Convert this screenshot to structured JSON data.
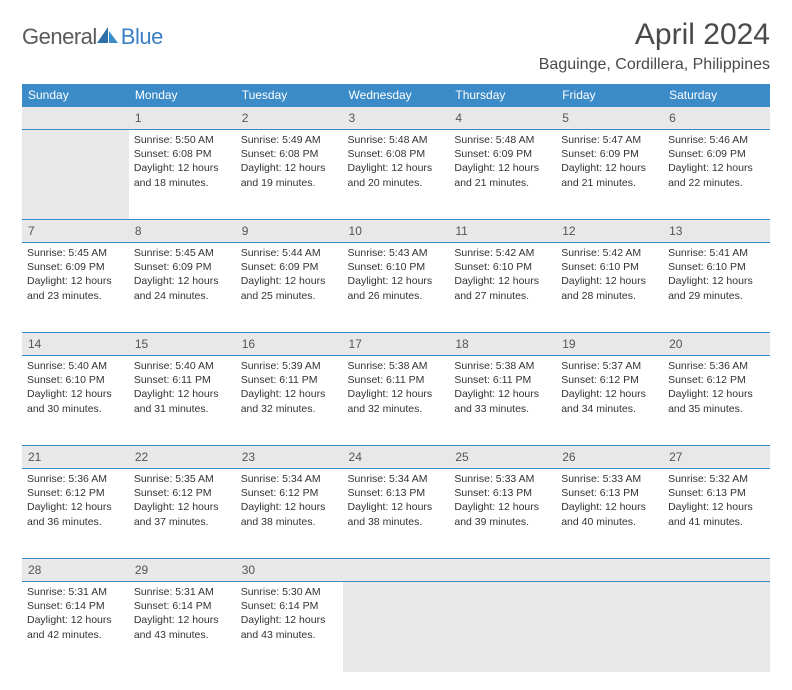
{
  "brand": {
    "general": "General",
    "blue": "Blue"
  },
  "title": "April 2024",
  "location": "Baguinge, Cordillera, Philippines",
  "colors": {
    "header_bg": "#3b8bc9",
    "header_text": "#ffffff",
    "daynum_bg": "#e8e8e8",
    "border": "#3b8bc9",
    "text": "#333333",
    "title": "#4a4a4a",
    "logo_gray": "#5a5a5a",
    "logo_blue": "#3b7fc4"
  },
  "day_headers": [
    "Sunday",
    "Monday",
    "Tuesday",
    "Wednesday",
    "Thursday",
    "Friday",
    "Saturday"
  ],
  "weeks": [
    [
      {
        "day": "",
        "sunrise": "",
        "sunset": "",
        "daylight": "",
        "empty": true
      },
      {
        "day": "1",
        "sunrise": "Sunrise: 5:50 AM",
        "sunset": "Sunset: 6:08 PM",
        "daylight": "Daylight: 12 hours and 18 minutes."
      },
      {
        "day": "2",
        "sunrise": "Sunrise: 5:49 AM",
        "sunset": "Sunset: 6:08 PM",
        "daylight": "Daylight: 12 hours and 19 minutes."
      },
      {
        "day": "3",
        "sunrise": "Sunrise: 5:48 AM",
        "sunset": "Sunset: 6:08 PM",
        "daylight": "Daylight: 12 hours and 20 minutes."
      },
      {
        "day": "4",
        "sunrise": "Sunrise: 5:48 AM",
        "sunset": "Sunset: 6:09 PM",
        "daylight": "Daylight: 12 hours and 21 minutes."
      },
      {
        "day": "5",
        "sunrise": "Sunrise: 5:47 AM",
        "sunset": "Sunset: 6:09 PM",
        "daylight": "Daylight: 12 hours and 21 minutes."
      },
      {
        "day": "6",
        "sunrise": "Sunrise: 5:46 AM",
        "sunset": "Sunset: 6:09 PM",
        "daylight": "Daylight: 12 hours and 22 minutes."
      }
    ],
    [
      {
        "day": "7",
        "sunrise": "Sunrise: 5:45 AM",
        "sunset": "Sunset: 6:09 PM",
        "daylight": "Daylight: 12 hours and 23 minutes."
      },
      {
        "day": "8",
        "sunrise": "Sunrise: 5:45 AM",
        "sunset": "Sunset: 6:09 PM",
        "daylight": "Daylight: 12 hours and 24 minutes."
      },
      {
        "day": "9",
        "sunrise": "Sunrise: 5:44 AM",
        "sunset": "Sunset: 6:09 PM",
        "daylight": "Daylight: 12 hours and 25 minutes."
      },
      {
        "day": "10",
        "sunrise": "Sunrise: 5:43 AM",
        "sunset": "Sunset: 6:10 PM",
        "daylight": "Daylight: 12 hours and 26 minutes."
      },
      {
        "day": "11",
        "sunrise": "Sunrise: 5:42 AM",
        "sunset": "Sunset: 6:10 PM",
        "daylight": "Daylight: 12 hours and 27 minutes."
      },
      {
        "day": "12",
        "sunrise": "Sunrise: 5:42 AM",
        "sunset": "Sunset: 6:10 PM",
        "daylight": "Daylight: 12 hours and 28 minutes."
      },
      {
        "day": "13",
        "sunrise": "Sunrise: 5:41 AM",
        "sunset": "Sunset: 6:10 PM",
        "daylight": "Daylight: 12 hours and 29 minutes."
      }
    ],
    [
      {
        "day": "14",
        "sunrise": "Sunrise: 5:40 AM",
        "sunset": "Sunset: 6:10 PM",
        "daylight": "Daylight: 12 hours and 30 minutes."
      },
      {
        "day": "15",
        "sunrise": "Sunrise: 5:40 AM",
        "sunset": "Sunset: 6:11 PM",
        "daylight": "Daylight: 12 hours and 31 minutes."
      },
      {
        "day": "16",
        "sunrise": "Sunrise: 5:39 AM",
        "sunset": "Sunset: 6:11 PM",
        "daylight": "Daylight: 12 hours and 32 minutes."
      },
      {
        "day": "17",
        "sunrise": "Sunrise: 5:38 AM",
        "sunset": "Sunset: 6:11 PM",
        "daylight": "Daylight: 12 hours and 32 minutes."
      },
      {
        "day": "18",
        "sunrise": "Sunrise: 5:38 AM",
        "sunset": "Sunset: 6:11 PM",
        "daylight": "Daylight: 12 hours and 33 minutes."
      },
      {
        "day": "19",
        "sunrise": "Sunrise: 5:37 AM",
        "sunset": "Sunset: 6:12 PM",
        "daylight": "Daylight: 12 hours and 34 minutes."
      },
      {
        "day": "20",
        "sunrise": "Sunrise: 5:36 AM",
        "sunset": "Sunset: 6:12 PM",
        "daylight": "Daylight: 12 hours and 35 minutes."
      }
    ],
    [
      {
        "day": "21",
        "sunrise": "Sunrise: 5:36 AM",
        "sunset": "Sunset: 6:12 PM",
        "daylight": "Daylight: 12 hours and 36 minutes."
      },
      {
        "day": "22",
        "sunrise": "Sunrise: 5:35 AM",
        "sunset": "Sunset: 6:12 PM",
        "daylight": "Daylight: 12 hours and 37 minutes."
      },
      {
        "day": "23",
        "sunrise": "Sunrise: 5:34 AM",
        "sunset": "Sunset: 6:12 PM",
        "daylight": "Daylight: 12 hours and 38 minutes."
      },
      {
        "day": "24",
        "sunrise": "Sunrise: 5:34 AM",
        "sunset": "Sunset: 6:13 PM",
        "daylight": "Daylight: 12 hours and 38 minutes."
      },
      {
        "day": "25",
        "sunrise": "Sunrise: 5:33 AM",
        "sunset": "Sunset: 6:13 PM",
        "daylight": "Daylight: 12 hours and 39 minutes."
      },
      {
        "day": "26",
        "sunrise": "Sunrise: 5:33 AM",
        "sunset": "Sunset: 6:13 PM",
        "daylight": "Daylight: 12 hours and 40 minutes."
      },
      {
        "day": "27",
        "sunrise": "Sunrise: 5:32 AM",
        "sunset": "Sunset: 6:13 PM",
        "daylight": "Daylight: 12 hours and 41 minutes."
      }
    ],
    [
      {
        "day": "28",
        "sunrise": "Sunrise: 5:31 AM",
        "sunset": "Sunset: 6:14 PM",
        "daylight": "Daylight: 12 hours and 42 minutes."
      },
      {
        "day": "29",
        "sunrise": "Sunrise: 5:31 AM",
        "sunset": "Sunset: 6:14 PM",
        "daylight": "Daylight: 12 hours and 43 minutes."
      },
      {
        "day": "30",
        "sunrise": "Sunrise: 5:30 AM",
        "sunset": "Sunset: 6:14 PM",
        "daylight": "Daylight: 12 hours and 43 minutes."
      },
      {
        "day": "",
        "sunrise": "",
        "sunset": "",
        "daylight": "",
        "empty": true
      },
      {
        "day": "",
        "sunrise": "",
        "sunset": "",
        "daylight": "",
        "empty": true
      },
      {
        "day": "",
        "sunrise": "",
        "sunset": "",
        "daylight": "",
        "empty": true
      },
      {
        "day": "",
        "sunrise": "",
        "sunset": "",
        "daylight": "",
        "empty": true
      }
    ]
  ]
}
